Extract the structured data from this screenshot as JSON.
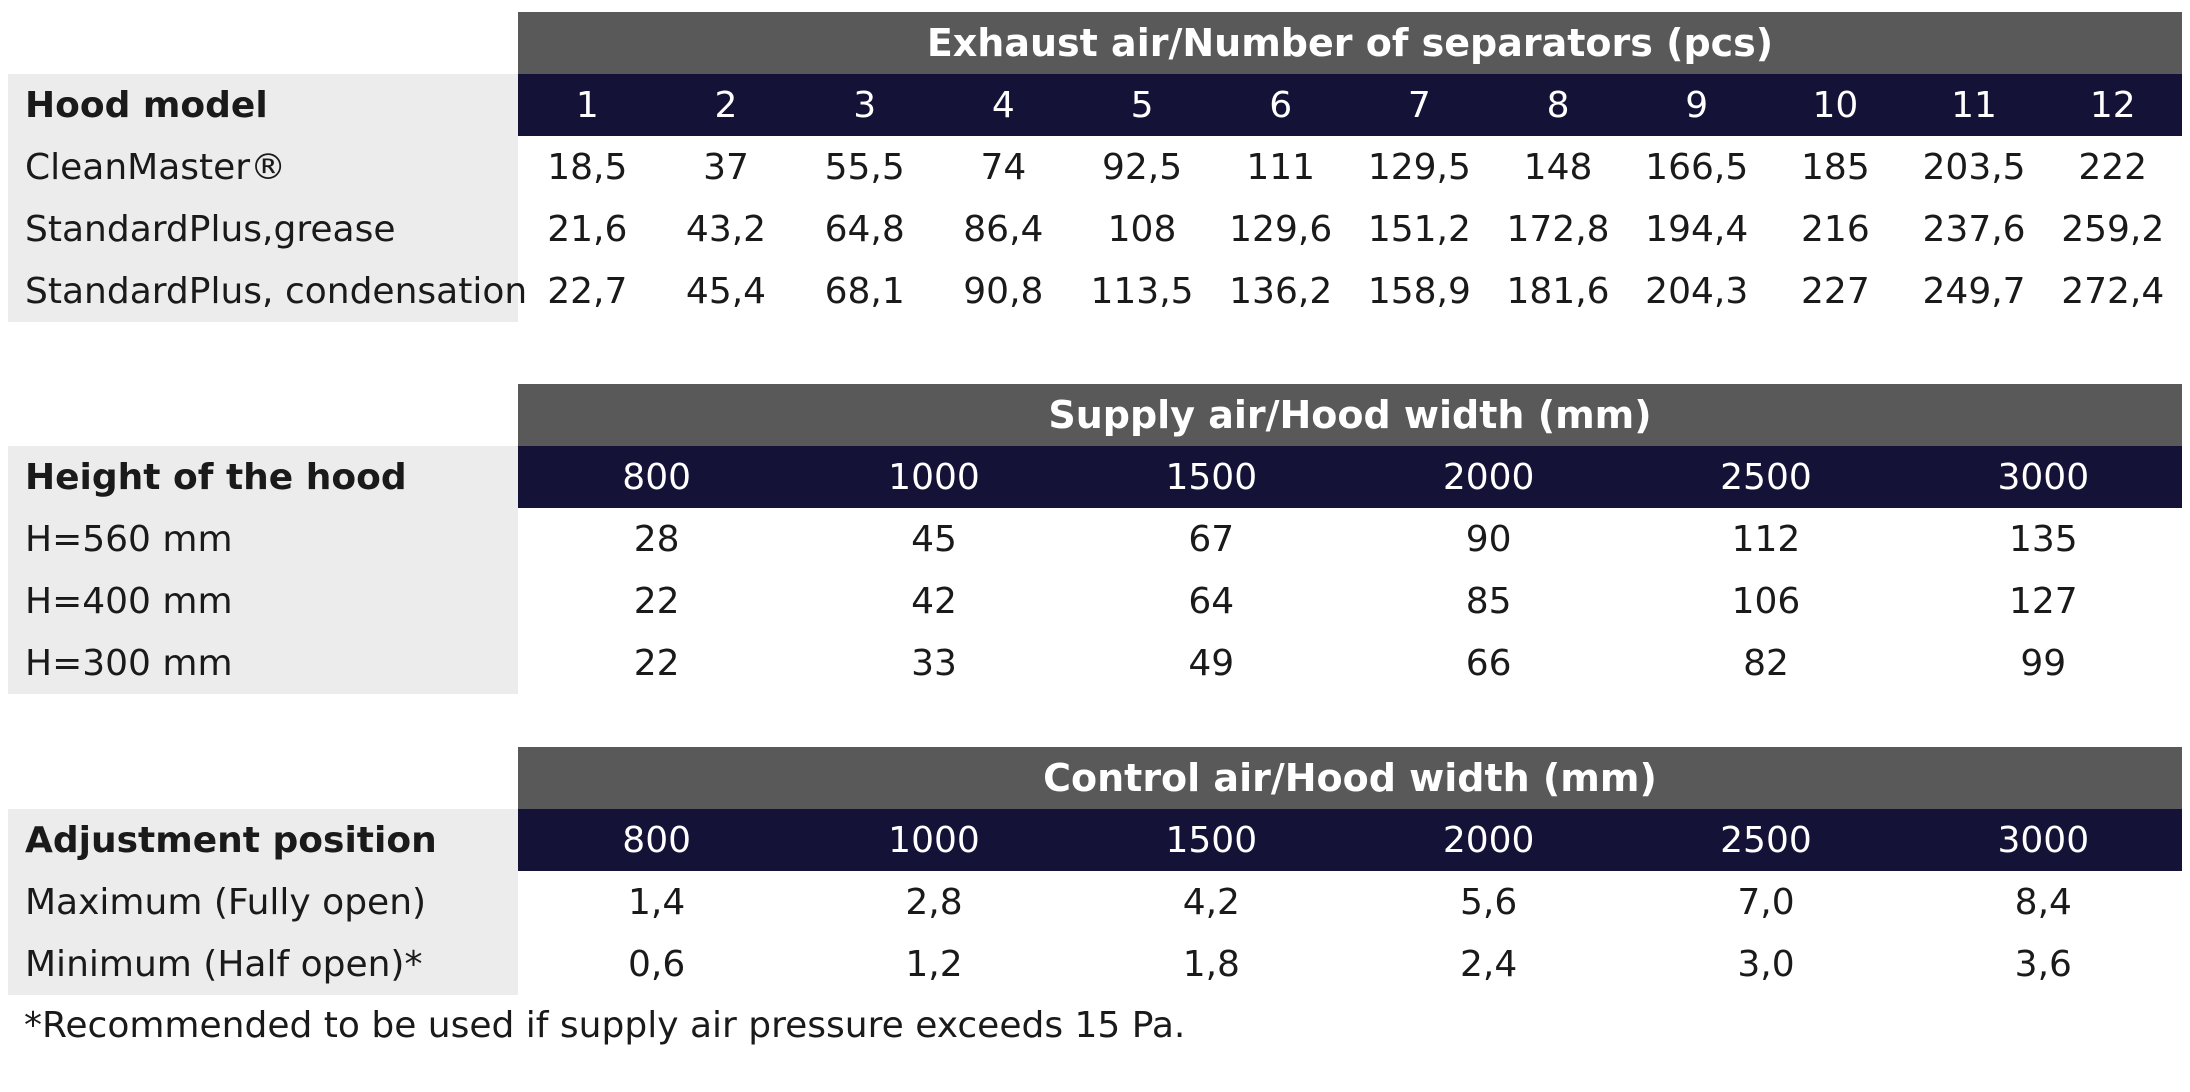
{
  "exhaust": {
    "title": "Exhaust air/Number of separators (pcs)",
    "row_header": "Hood model",
    "columns": [
      "1",
      "2",
      "3",
      "4",
      "5",
      "6",
      "7",
      "8",
      "9",
      "10",
      "11",
      "12"
    ],
    "rows": [
      {
        "label": "CleanMaster®",
        "values": [
          "18,5",
          "37",
          "55,5",
          "74",
          "92,5",
          "111",
          "129,5",
          "148",
          "166,5",
          "185",
          "203,5",
          "222"
        ]
      },
      {
        "label": "StandardPlus,grease",
        "values": [
          "21,6",
          "43,2",
          "64,8",
          "86,4",
          "108",
          "129,6",
          "151,2",
          "172,8",
          "194,4",
          "216",
          "237,6",
          "259,2"
        ]
      },
      {
        "label": "StandardPlus, condensation",
        "values": [
          "22,7",
          "45,4",
          "68,1",
          "90,8",
          "113,5",
          "136,2",
          "158,9",
          "181,6",
          "204,3",
          "227",
          "249,7",
          "272,4"
        ]
      }
    ]
  },
  "supply": {
    "title": "Supply air/Hood width (mm)",
    "row_header": "Height of the hood",
    "columns": [
      "800",
      "1000",
      "1500",
      "2000",
      "2500",
      "3000"
    ],
    "rows": [
      {
        "label": "H=560 mm",
        "values": [
          "28",
          "45",
          "67",
          "90",
          "112",
          "135"
        ]
      },
      {
        "label": "H=400 mm",
        "values": [
          "22",
          "42",
          "64",
          "85",
          "106",
          "127"
        ]
      },
      {
        "label": "H=300 mm",
        "values": [
          "22",
          "33",
          "49",
          "66",
          "82",
          "99"
        ]
      }
    ]
  },
  "control": {
    "title": "Control air/Hood width (mm)",
    "row_header": "Adjustment position",
    "columns": [
      "800",
      "1000",
      "1500",
      "2000",
      "2500",
      "3000"
    ],
    "rows": [
      {
        "label": "Maximum (Fully open)",
        "values": [
          "1,4",
          "2,8",
          "4,2",
          "5,6",
          "7,0",
          "8,4"
        ]
      },
      {
        "label": "Minimum (Half open)*",
        "values": [
          "0,6",
          "1,2",
          "1,8",
          "2,4",
          "3,0",
          "3,6"
        ]
      }
    ]
  },
  "footnote": "*Recommended to be used if supply air pressure exceeds 15 Pa."
}
